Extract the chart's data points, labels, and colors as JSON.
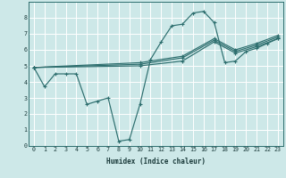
{
  "xlabel": "Humidex (Indice chaleur)",
  "background_color": "#cde8e8",
  "grid_color": "#ffffff",
  "line_color": "#2d6e6e",
  "xlim": [
    -0.5,
    23.5
  ],
  "ylim": [
    0,
    9
  ],
  "xticks": [
    0,
    1,
    2,
    3,
    4,
    5,
    6,
    7,
    8,
    9,
    10,
    11,
    12,
    13,
    14,
    15,
    16,
    17,
    18,
    19,
    20,
    21,
    22,
    23
  ],
  "yticks": [
    0,
    1,
    2,
    3,
    4,
    5,
    6,
    7,
    8
  ],
  "series": [
    {
      "x": [
        0,
        1,
        2,
        3,
        4,
        5,
        6,
        7,
        8,
        9,
        10,
        11,
        12,
        13,
        14,
        15,
        16,
        17,
        18,
        19,
        20,
        21,
        22,
        23
      ],
      "y": [
        4.9,
        3.7,
        4.5,
        4.5,
        4.5,
        2.6,
        2.8,
        3.0,
        0.3,
        0.4,
        2.6,
        5.4,
        6.5,
        7.5,
        7.6,
        8.3,
        8.4,
        7.7,
        5.2,
        5.3,
        5.9,
        6.1,
        6.4,
        6.7
      ]
    },
    {
      "x": [
        0,
        10,
        14,
        17,
        19,
        21,
        23
      ],
      "y": [
        4.9,
        5.0,
        5.3,
        6.5,
        5.8,
        6.2,
        6.7
      ]
    },
    {
      "x": [
        0,
        10,
        14,
        17,
        19,
        21,
        23
      ],
      "y": [
        4.9,
        5.1,
        5.5,
        6.6,
        5.9,
        6.3,
        6.8
      ]
    },
    {
      "x": [
        0,
        10,
        14,
        17,
        19,
        21,
        23
      ],
      "y": [
        4.9,
        5.2,
        5.6,
        6.7,
        6.0,
        6.4,
        6.9
      ]
    }
  ]
}
